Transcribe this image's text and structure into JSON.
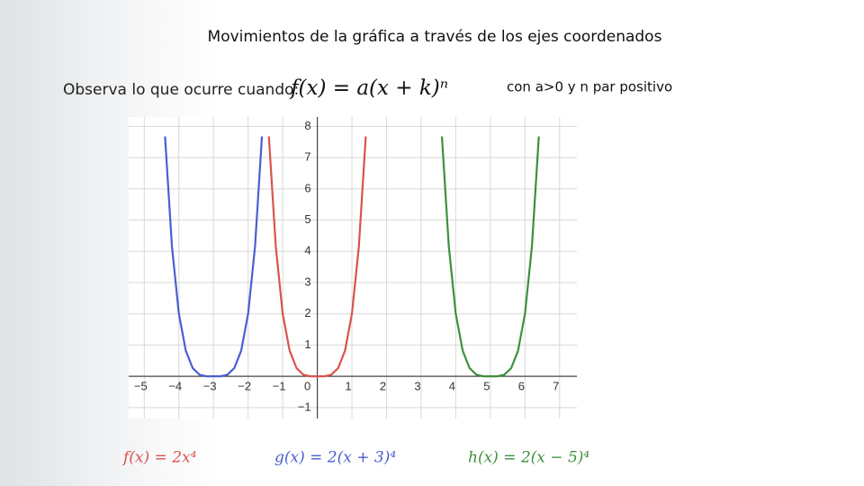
{
  "slide": {
    "title": "Movimientos de la gráfica a través de los ejes coordenados",
    "prompt": "Observa lo que ocurre cuando:",
    "formula": "f(x) = a(x + k)ⁿ",
    "condition": "con a>0 y n par positivo"
  },
  "chart_data": {
    "type": "line",
    "xlim": [
      -5.45,
      7.5
    ],
    "ylim": [
      -1.35,
      8.3
    ],
    "xticks": [
      {
        "value": -5,
        "label": "−5"
      },
      {
        "value": -4,
        "label": "−4"
      },
      {
        "value": -3,
        "label": "−3"
      },
      {
        "value": -2,
        "label": "−2"
      },
      {
        "value": -1,
        "label": "−1"
      },
      0,
      1,
      2,
      3,
      4,
      5,
      6,
      7
    ],
    "yticks": [
      {
        "value": -1,
        "label": "−1"
      },
      1,
      2,
      3,
      4,
      5,
      6,
      7,
      8
    ],
    "grid": true,
    "series": [
      {
        "name": "f(x) = 2x⁴",
        "color": "#d9534f",
        "x": [
          -1.4,
          -1.2,
          -1,
          -0.8,
          -0.6,
          -0.4,
          -0.2,
          0,
          0.2,
          0.4,
          0.6,
          0.8,
          1,
          1.2,
          1.4
        ],
        "values": [
          7.68,
          4.15,
          2,
          0.82,
          0.26,
          0.05,
          0,
          0,
          0,
          0.05,
          0.26,
          0.82,
          2,
          4.15,
          7.68
        ]
      },
      {
        "name": "g(x) = 2(x + 3)⁴",
        "color": "#4a5fd0",
        "x": [
          -4.4,
          -4.2,
          -4,
          -3.8,
          -3.6,
          -3.4,
          -3.2,
          -3,
          -2.8,
          -2.6,
          -2.4,
          -2.2,
          -2,
          -1.8,
          -1.6
        ],
        "values": [
          7.68,
          4.15,
          2,
          0.82,
          0.26,
          0.05,
          0,
          0,
          0,
          0.05,
          0.26,
          0.82,
          2,
          4.15,
          7.68
        ]
      },
      {
        "name": "h(x) = 2(x − 5)⁴",
        "color": "#3f8f3f",
        "x": [
          3.6,
          3.8,
          4,
          4.2,
          4.4,
          4.6,
          4.8,
          5,
          5.2,
          5.4,
          5.6,
          5.8,
          6,
          6.2,
          6.4
        ],
        "values": [
          7.68,
          4.15,
          2,
          0.82,
          0.26,
          0.05,
          0,
          0,
          0,
          0.05,
          0.26,
          0.82,
          2,
          4.15,
          7.68
        ]
      }
    ]
  }
}
